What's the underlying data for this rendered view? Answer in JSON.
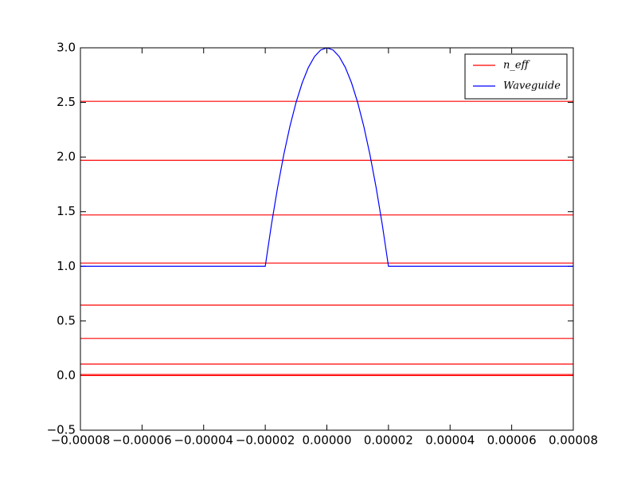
{
  "chart_data": {
    "type": "line",
    "xlim": [
      -8e-05,
      8e-05
    ],
    "ylim": [
      -0.5,
      3.0
    ],
    "xticks": [
      {
        "value": -8e-05,
        "label": "−0.00008"
      },
      {
        "value": -6e-05,
        "label": "−0.00006"
      },
      {
        "value": -4e-05,
        "label": "−0.00004"
      },
      {
        "value": -2e-05,
        "label": "−0.00002"
      },
      {
        "value": 0,
        "label": "0.00000"
      },
      {
        "value": 2e-05,
        "label": "0.00002"
      },
      {
        "value": 4e-05,
        "label": "0.00004"
      },
      {
        "value": 6e-05,
        "label": "0.00006"
      },
      {
        "value": 8e-05,
        "label": "0.00008"
      }
    ],
    "yticks": [
      {
        "value": -0.5,
        "label": "−0.5"
      },
      {
        "value": 0,
        "label": "0.0"
      },
      0.5,
      {
        "value": 1,
        "label": "1.0"
      },
      1.5,
      {
        "value": 2,
        "label": "2.0"
      },
      2.5,
      {
        "value": 3,
        "label": "3.0"
      }
    ],
    "legend": "upper right",
    "series": [
      {
        "name": "n_eff",
        "color": "#ff0000",
        "style": "hlines",
        "values": [
          2.51,
          1.97,
          1.47,
          1.03,
          0.645,
          0.34,
          0.105,
          0.01,
          0.0
        ]
      },
      {
        "name": "Waveguide",
        "color": "#0000ff",
        "x": [
          -8e-05,
          -2e-05,
          -1.8e-05,
          -1.6e-05,
          -1.4e-05,
          -1.2e-05,
          -1e-05,
          -8e-06,
          -6e-06,
          -4e-06,
          -2e-06,
          0,
          2e-06,
          4e-06,
          6e-06,
          8e-06,
          1e-05,
          1.2e-05,
          1.4e-05,
          1.6e-05,
          1.8e-05,
          2e-05,
          8e-05
        ],
        "values": [
          1.0,
          1.0,
          1.38,
          1.72,
          2.02,
          2.28,
          2.5,
          2.68,
          2.82,
          2.92,
          2.98,
          3.0,
          2.98,
          2.92,
          2.82,
          2.68,
          2.5,
          2.28,
          2.02,
          1.72,
          1.38,
          1.0,
          1.0
        ]
      }
    ]
  }
}
